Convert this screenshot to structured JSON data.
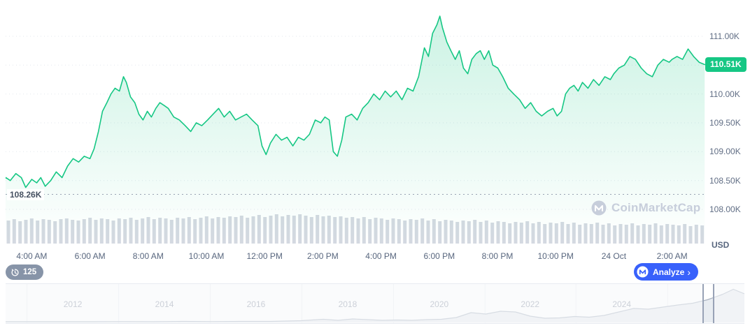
{
  "watermark": {
    "text": "CoinMarketCap"
  },
  "controls": {
    "history_count": "125",
    "analyze_label": "Analyze",
    "analyze_chevron": "›"
  },
  "chart_data": {
    "type": "line",
    "unit": "USD",
    "colors": {
      "line": "#16c784",
      "accent_blue": "#3861fb",
      "volume_bar": "#cfd5de"
    },
    "current_price": {
      "value": 110.51,
      "label": "110.51K"
    },
    "open_price": {
      "value": 108.26,
      "label": "108.26K"
    },
    "y_axis": {
      "unit_label": "USD",
      "ticks": [
        {
          "value": 111.0,
          "label": "111.00K"
        },
        {
          "value": 110.0,
          "label": "110.00K"
        },
        {
          "value": 109.5,
          "label": "109.50K"
        },
        {
          "value": 109.0,
          "label": "109.00K"
        },
        {
          "value": 108.5,
          "label": "108.50K"
        },
        {
          "value": 108.0,
          "label": "108.00K"
        }
      ],
      "gridline_values": [
        111.0,
        110.5,
        110.0,
        109.5,
        109.0,
        108.5,
        108.0
      ],
      "ylim": [
        108.0,
        111.0
      ]
    },
    "x_axis": {
      "ticks": [
        {
          "hour": 4,
          "label": "4:00 AM"
        },
        {
          "hour": 6,
          "label": "6:00 AM"
        },
        {
          "hour": 8,
          "label": "8:00 AM"
        },
        {
          "hour": 10,
          "label": "10:00 AM"
        },
        {
          "hour": 12,
          "label": "12:00 PM"
        },
        {
          "hour": 14,
          "label": "2:00 PM"
        },
        {
          "hour": 16,
          "label": "4:00 PM"
        },
        {
          "hour": 18,
          "label": "6:00 PM"
        },
        {
          "hour": 20,
          "label": "8:00 PM"
        },
        {
          "hour": 22,
          "label": "10:00 PM"
        },
        {
          "hour": 24,
          "label": "24 Oct"
        },
        {
          "hour": 26,
          "label": "2:00 AM"
        }
      ]
    },
    "price_series": {
      "x_unit": "hour_of_day_24h_plus",
      "points": [
        [
          2.92,
          108.42
        ],
        [
          3.11,
          108.55
        ],
        [
          3.26,
          108.5
        ],
        [
          3.45,
          108.62
        ],
        [
          3.64,
          108.55
        ],
        [
          3.79,
          108.38
        ],
        [
          4.0,
          108.52
        ],
        [
          4.17,
          108.46
        ],
        [
          4.31,
          108.55
        ],
        [
          4.46,
          108.4
        ],
        [
          4.65,
          108.5
        ],
        [
          4.84,
          108.65
        ],
        [
          5.04,
          108.55
        ],
        [
          5.23,
          108.75
        ],
        [
          5.42,
          108.88
        ],
        [
          5.61,
          108.82
        ],
        [
          5.8,
          108.92
        ],
        [
          6.0,
          108.88
        ],
        [
          6.14,
          109.05
        ],
        [
          6.29,
          109.35
        ],
        [
          6.43,
          109.7
        ],
        [
          6.58,
          109.85
        ],
        [
          6.72,
          110.0
        ],
        [
          6.86,
          110.1
        ],
        [
          7.01,
          110.05
        ],
        [
          7.15,
          110.3
        ],
        [
          7.25,
          110.2
        ],
        [
          7.39,
          109.95
        ],
        [
          7.54,
          109.85
        ],
        [
          7.68,
          109.65
        ],
        [
          7.82,
          109.55
        ],
        [
          7.97,
          109.7
        ],
        [
          8.11,
          109.6
        ],
        [
          8.26,
          109.75
        ],
        [
          8.4,
          109.85
        ],
        [
          8.55,
          109.8
        ],
        [
          8.69,
          109.75
        ],
        [
          8.88,
          109.6
        ],
        [
          9.07,
          109.55
        ],
        [
          9.27,
          109.45
        ],
        [
          9.46,
          109.35
        ],
        [
          9.65,
          109.5
        ],
        [
          9.84,
          109.45
        ],
        [
          10.04,
          109.55
        ],
        [
          10.23,
          109.65
        ],
        [
          10.42,
          109.75
        ],
        [
          10.61,
          109.6
        ],
        [
          10.8,
          109.7
        ],
        [
          11.0,
          109.55
        ],
        [
          11.19,
          109.6
        ],
        [
          11.38,
          109.65
        ],
        [
          11.57,
          109.55
        ],
        [
          11.77,
          109.45
        ],
        [
          11.91,
          109.1
        ],
        [
          12.05,
          108.95
        ],
        [
          12.2,
          109.15
        ],
        [
          12.39,
          109.3
        ],
        [
          12.58,
          109.2
        ],
        [
          12.77,
          109.25
        ],
        [
          12.97,
          109.1
        ],
        [
          13.16,
          109.25
        ],
        [
          13.35,
          109.2
        ],
        [
          13.54,
          109.3
        ],
        [
          13.74,
          109.55
        ],
        [
          13.93,
          109.5
        ],
        [
          14.07,
          109.6
        ],
        [
          14.22,
          109.55
        ],
        [
          14.36,
          109.0
        ],
        [
          14.5,
          108.92
        ],
        [
          14.65,
          109.2
        ],
        [
          14.79,
          109.6
        ],
        [
          14.99,
          109.65
        ],
        [
          15.18,
          109.55
        ],
        [
          15.37,
          109.75
        ],
        [
          15.56,
          109.85
        ],
        [
          15.75,
          110.0
        ],
        [
          15.95,
          109.9
        ],
        [
          16.14,
          110.05
        ],
        [
          16.33,
          109.95
        ],
        [
          16.52,
          110.05
        ],
        [
          16.72,
          109.9
        ],
        [
          16.91,
          110.1
        ],
        [
          17.1,
          110.05
        ],
        [
          17.29,
          110.3
        ],
        [
          17.49,
          110.8
        ],
        [
          17.63,
          110.65
        ],
        [
          17.77,
          111.05
        ],
        [
          17.92,
          111.2
        ],
        [
          18.02,
          111.35
        ],
        [
          18.11,
          111.15
        ],
        [
          18.26,
          110.9
        ],
        [
          18.4,
          110.75
        ],
        [
          18.55,
          110.6
        ],
        [
          18.69,
          110.75
        ],
        [
          18.83,
          110.45
        ],
        [
          18.98,
          110.35
        ],
        [
          19.12,
          110.6
        ],
        [
          19.27,
          110.7
        ],
        [
          19.41,
          110.75
        ],
        [
          19.55,
          110.6
        ],
        [
          19.7,
          110.75
        ],
        [
          19.84,
          110.5
        ],
        [
          20.01,
          110.45
        ],
        [
          20.18,
          110.3
        ],
        [
          20.37,
          110.1
        ],
        [
          20.56,
          110.0
        ],
        [
          20.76,
          109.9
        ],
        [
          20.95,
          109.75
        ],
        [
          21.14,
          109.85
        ],
        [
          21.33,
          109.7
        ],
        [
          21.52,
          109.62
        ],
        [
          21.72,
          109.7
        ],
        [
          21.91,
          109.75
        ],
        [
          22.05,
          109.62
        ],
        [
          22.2,
          109.7
        ],
        [
          22.34,
          110.0
        ],
        [
          22.48,
          110.1
        ],
        [
          22.63,
          110.15
        ],
        [
          22.77,
          110.05
        ],
        [
          22.92,
          110.2
        ],
        [
          23.11,
          110.1
        ],
        [
          23.3,
          110.25
        ],
        [
          23.49,
          110.15
        ],
        [
          23.69,
          110.3
        ],
        [
          23.88,
          110.25
        ],
        [
          24.0,
          110.35
        ],
        [
          24.17,
          110.45
        ],
        [
          24.36,
          110.5
        ],
        [
          24.55,
          110.65
        ],
        [
          24.74,
          110.6
        ],
        [
          24.94,
          110.45
        ],
        [
          25.13,
          110.35
        ],
        [
          25.32,
          110.3
        ],
        [
          25.51,
          110.5
        ],
        [
          25.7,
          110.6
        ],
        [
          25.9,
          110.55
        ],
        [
          26.0,
          110.6
        ],
        [
          26.17,
          110.65
        ],
        [
          26.36,
          110.6
        ],
        [
          26.55,
          110.78
        ],
        [
          26.74,
          110.65
        ],
        [
          26.93,
          110.55
        ],
        [
          27.12,
          110.51
        ]
      ]
    },
    "volume_series": {
      "values": [
        33,
        35,
        32,
        34,
        36,
        33,
        35,
        34,
        32,
        35,
        36,
        34,
        33,
        35,
        37,
        34,
        36,
        35,
        33,
        36,
        35,
        37,
        34,
        36,
        38,
        35,
        37,
        36,
        34,
        37,
        36,
        38,
        35,
        37,
        39,
        36,
        38,
        37,
        39,
        38,
        40,
        37,
        39,
        41,
        38,
        40,
        42,
        39,
        41,
        40,
        42,
        40,
        38,
        41,
        39,
        40,
        38,
        39,
        37,
        38,
        36,
        38,
        35,
        37,
        36,
        34,
        36,
        35,
        33,
        35,
        34,
        36,
        33,
        35,
        32,
        34,
        33,
        31,
        33,
        32,
        34,
        31,
        33,
        30,
        32,
        31,
        29,
        31,
        30,
        32,
        29,
        31,
        28,
        30,
        29,
        31,
        28,
        30,
        27,
        29,
        28,
        30,
        27,
        29,
        26,
        28,
        27,
        29,
        26,
        28,
        27,
        29,
        26,
        28,
        27,
        26,
        28,
        25,
        27,
        26
      ]
    },
    "range_selector": {
      "year_labels": [
        {
          "label": "2012",
          "x": 0.091
        },
        {
          "label": "2014",
          "x": 0.215
        },
        {
          "label": "2016",
          "x": 0.339
        },
        {
          "label": "2018",
          "x": 0.463
        },
        {
          "label": "2020",
          "x": 0.587
        },
        {
          "label": "2022",
          "x": 0.71
        },
        {
          "label": "2024",
          "x": 0.834
        }
      ],
      "gridlines": [
        0.029,
        0.153,
        0.277,
        0.401,
        0.525,
        0.649,
        0.772,
        0.896
      ],
      "points": [
        [
          0.0,
          0.02
        ],
        [
          0.04,
          0.02
        ],
        [
          0.08,
          0.02
        ],
        [
          0.12,
          0.02
        ],
        [
          0.16,
          0.025
        ],
        [
          0.2,
          0.02
        ],
        [
          0.24,
          0.03
        ],
        [
          0.28,
          0.025
        ],
        [
          0.32,
          0.03
        ],
        [
          0.36,
          0.03
        ],
        [
          0.4,
          0.05
        ],
        [
          0.43,
          0.09
        ],
        [
          0.45,
          0.06
        ],
        [
          0.47,
          0.1
        ],
        [
          0.49,
          0.08
        ],
        [
          0.51,
          0.06
        ],
        [
          0.53,
          0.07
        ],
        [
          0.55,
          0.06
        ],
        [
          0.57,
          0.08
        ],
        [
          0.59,
          0.09
        ],
        [
          0.61,
          0.14
        ],
        [
          0.63,
          0.28
        ],
        [
          0.65,
          0.24
        ],
        [
          0.67,
          0.32
        ],
        [
          0.69,
          0.3
        ],
        [
          0.71,
          0.18
        ],
        [
          0.73,
          0.12
        ],
        [
          0.75,
          0.13
        ],
        [
          0.77,
          0.17
        ],
        [
          0.79,
          0.15
        ],
        [
          0.81,
          0.2
        ],
        [
          0.83,
          0.3
        ],
        [
          0.85,
          0.4
        ],
        [
          0.87,
          0.38
        ],
        [
          0.89,
          0.44
        ],
        [
          0.91,
          0.5
        ],
        [
          0.93,
          0.55
        ],
        [
          0.95,
          0.65
        ],
        [
          0.97,
          0.8
        ],
        [
          0.985,
          0.95
        ],
        [
          1.0,
          0.82
        ]
      ],
      "selection": {
        "start": 0.944,
        "end": 0.958
      }
    }
  }
}
